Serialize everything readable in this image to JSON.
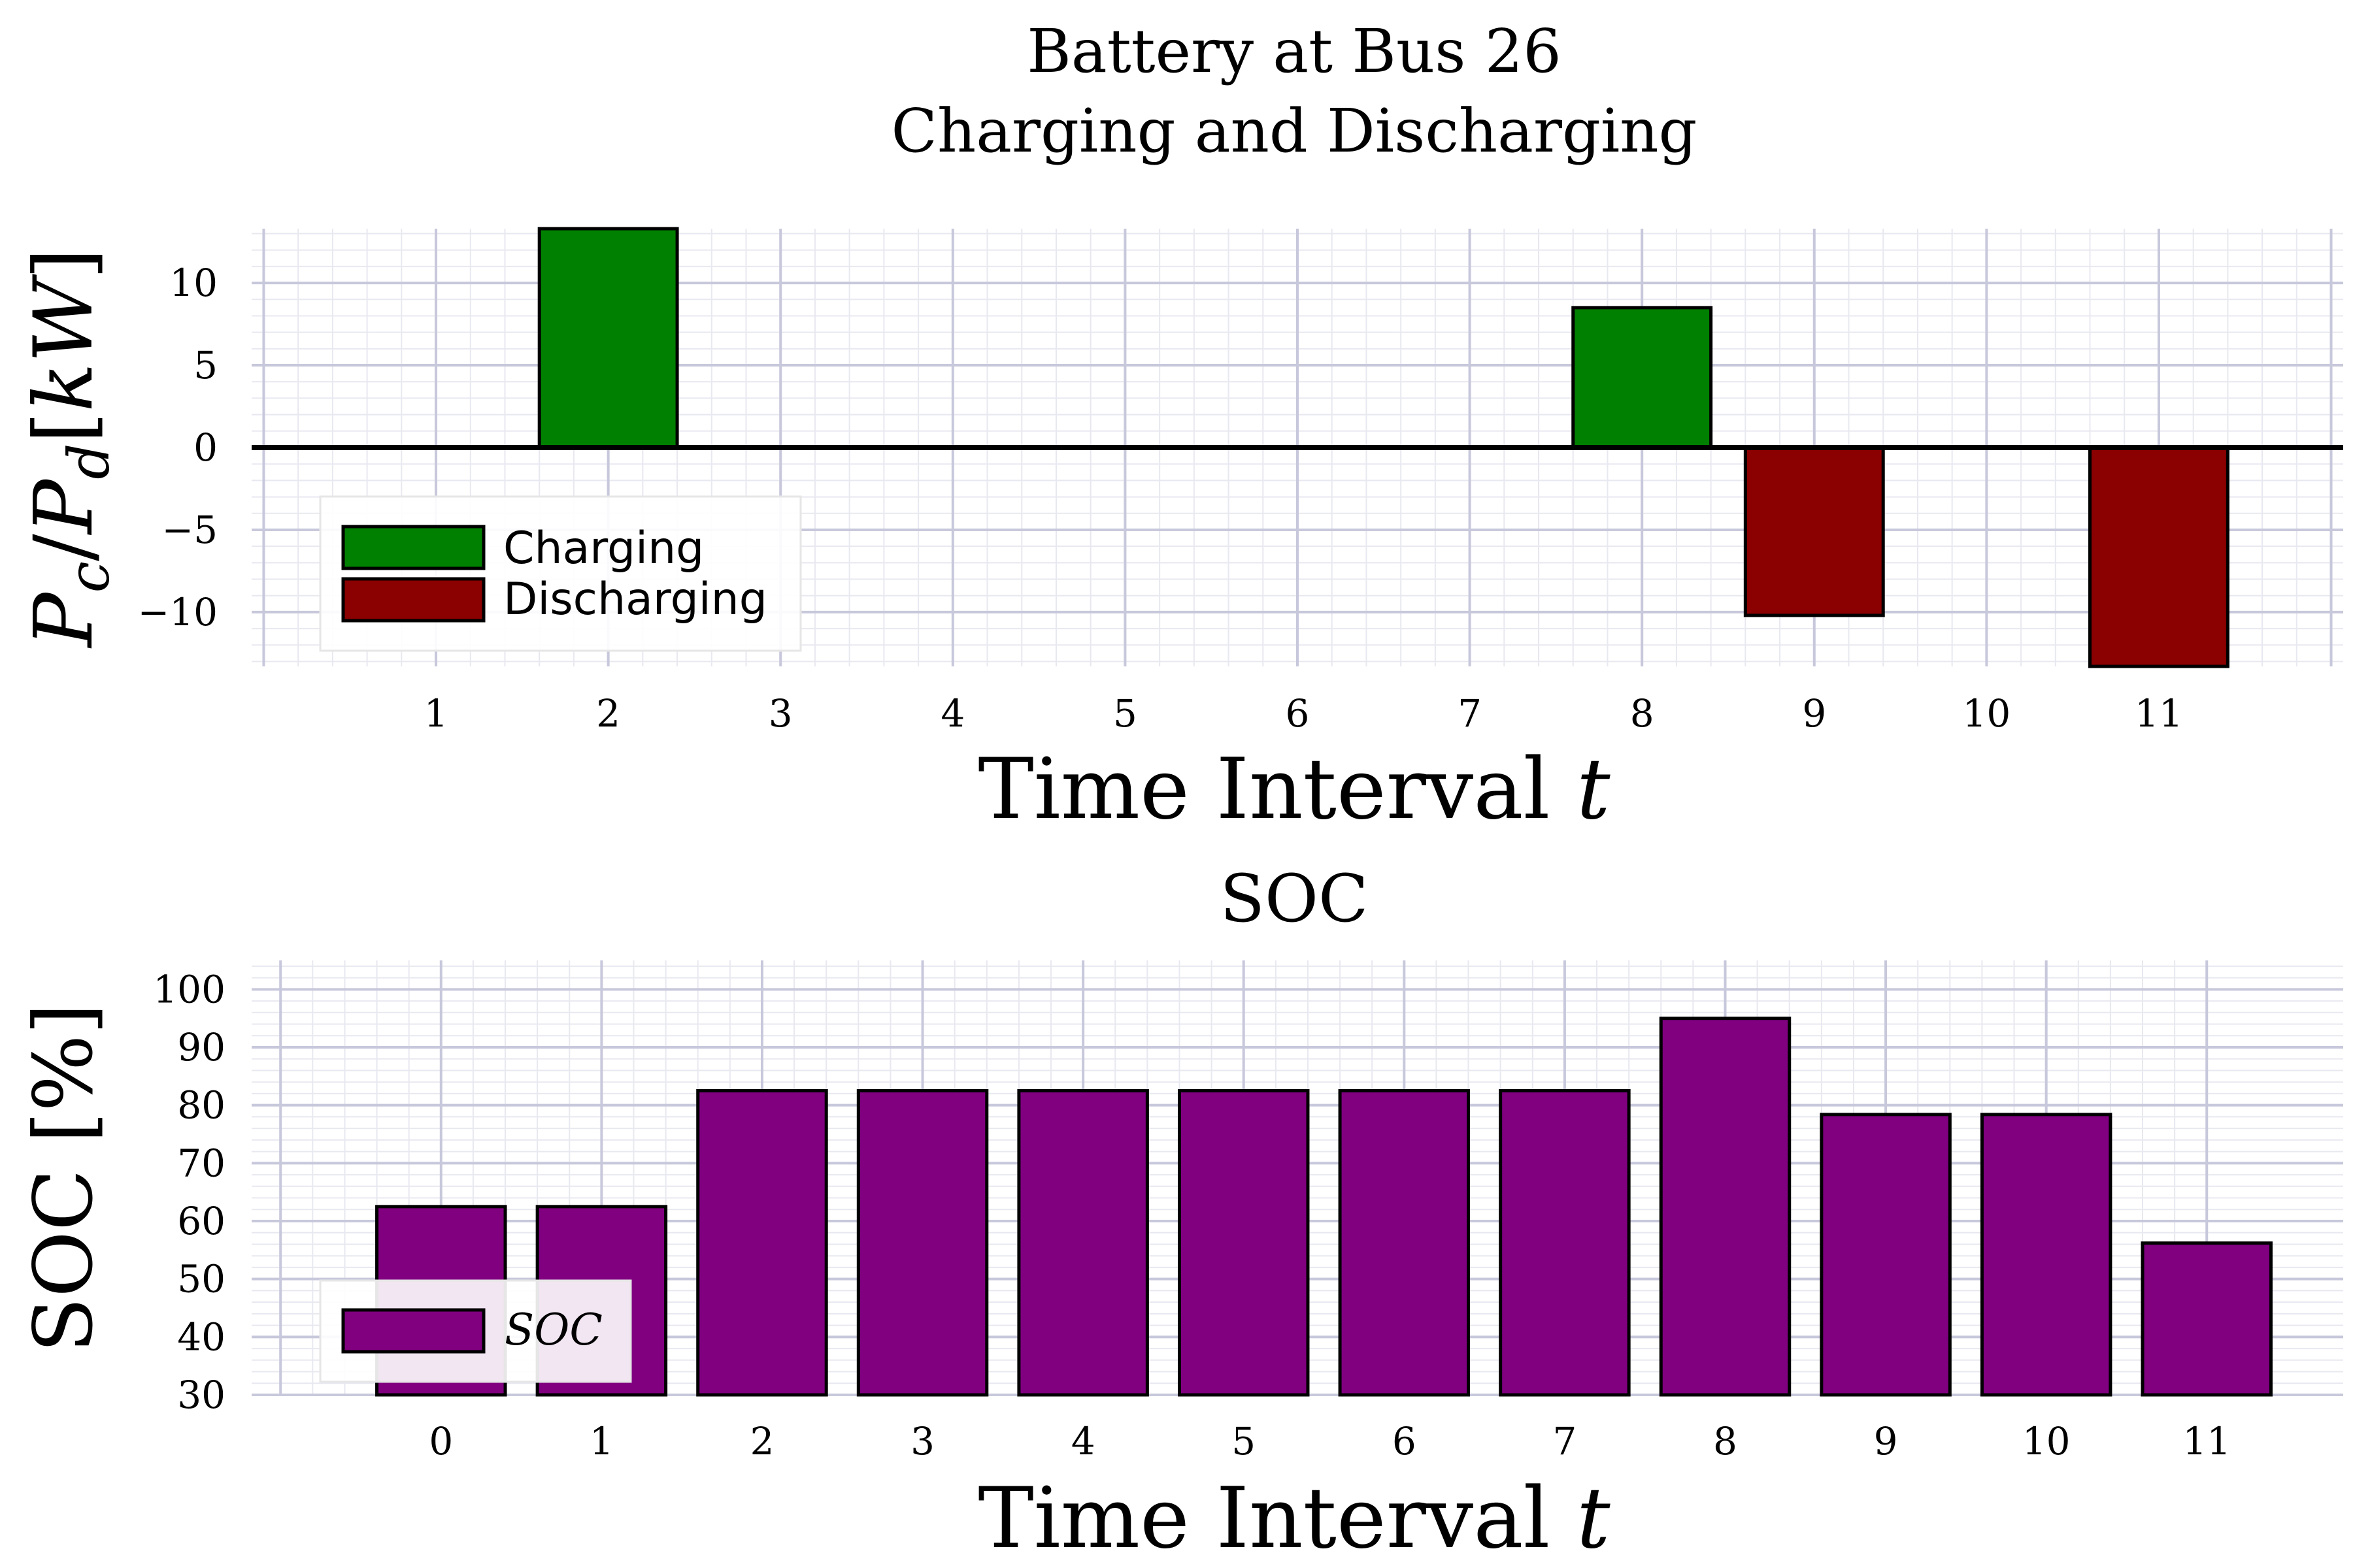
{
  "title_line1": "Battery at Bus 26",
  "title_line2": "Charging and Discharging",
  "colors": {
    "charging": "#008000",
    "discharging": "#8b0000",
    "soc": "#800080",
    "grid_major": "#c8c8dc",
    "grid_minor": "#e8e8f0"
  },
  "chart_data": [
    {
      "type": "bar",
      "title": "",
      "xlabel": "Time Interval t",
      "ylabel": "P_c / P_d [kW]",
      "categories": [
        "1",
        "2",
        "3",
        "4",
        "5",
        "6",
        "7",
        "8",
        "9",
        "10",
        "11"
      ],
      "x": [
        1,
        2,
        3,
        4,
        5,
        6,
        7,
        8,
        9,
        10,
        11
      ],
      "series": [
        {
          "name": "Charging",
          "values": [
            0,
            13.3,
            0,
            0,
            0,
            0,
            0,
            8.5,
            0,
            0,
            0
          ]
        },
        {
          "name": "Discharging",
          "values": [
            0,
            0,
            0,
            0,
            0,
            0,
            0,
            0,
            -10.2,
            0,
            -13.3
          ]
        }
      ],
      "yticks": [
        -10,
        -5,
        0,
        5,
        10
      ],
      "ylim": [
        -13.3,
        13.3
      ],
      "grid": true,
      "legend": "lower-left"
    },
    {
      "type": "bar",
      "title": "SOC",
      "xlabel": "Time Interval t",
      "ylabel": "SOC [%]",
      "categories": [
        "0",
        "1",
        "2",
        "3",
        "4",
        "5",
        "6",
        "7",
        "8",
        "9",
        "10",
        "11"
      ],
      "x": [
        0,
        1,
        2,
        3,
        4,
        5,
        6,
        7,
        8,
        9,
        10,
        11
      ],
      "series": [
        {
          "name": "SOC",
          "values": [
            62.5,
            62.5,
            82.5,
            82.5,
            82.5,
            82.5,
            82.5,
            82.5,
            95,
            78.4,
            78.4,
            56.2
          ]
        }
      ],
      "yticks": [
        30,
        40,
        50,
        60,
        70,
        80,
        90,
        100
      ],
      "ylim": [
        30,
        105
      ],
      "grid": true,
      "legend": "lower-left"
    }
  ]
}
